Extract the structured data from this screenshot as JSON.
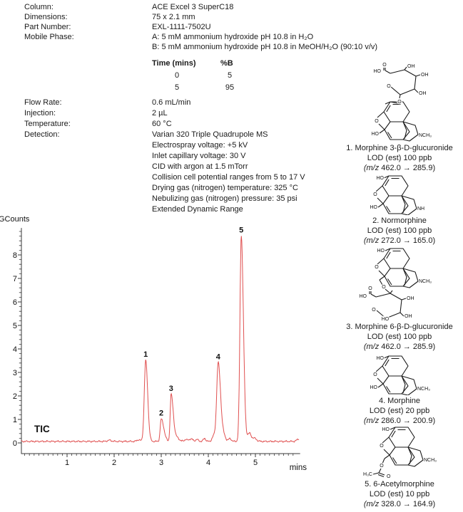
{
  "params": [
    {
      "label": "Column:",
      "value": "ACE Excel 3 SuperC18"
    },
    {
      "label": "Dimensions:",
      "value": "75 x 2.1 mm"
    },
    {
      "label": "Part Number:",
      "value": "EXL-1111-7502U"
    },
    {
      "label": "Mobile Phase:",
      "value": "A: 5 mM ammonium hydroxide pH 10.8 in H₂O",
      "value2": "B: 5 mM ammonium hydroxide pH 10.8 in MeOH/H₂O (90:10 v/v)"
    },
    {
      "label": "Flow Rate:",
      "value": "0.6 mL/min"
    },
    {
      "label": "Injection:",
      "value": "2 µL"
    },
    {
      "label": "Temperature:",
      "value": "60 °C"
    },
    {
      "label": "Detection:",
      "value": "Varian 320 Triple Quadrupole MS"
    }
  ],
  "detection_details": [
    "Electrospray voltage: +5 kV",
    "Inlet capillary voltage: 30 V",
    "CID with argon at 1.5 mTorr",
    "Collision cell potential ranges from 5 to 17 V",
    "Drying gas (nitrogen) temperature: 325 °C",
    "Nebulizing gas (nitrogen) pressure: 35 psi",
    "Extended Dynamic Range"
  ],
  "gradient_table": {
    "headers": [
      "Time (mins)",
      "%B"
    ],
    "rows": [
      [
        "0",
        "5"
      ],
      [
        "5",
        "95"
      ]
    ]
  },
  "chart_data": {
    "type": "line",
    "title": "TIC",
    "ylabel": "GCounts",
    "xlabel": "mins",
    "xlim": [
      0,
      5.95
    ],
    "ylim": [
      0,
      9.15
    ],
    "xticks": [
      1,
      2,
      3,
      4,
      5
    ],
    "yticks": [
      0,
      1,
      2,
      3,
      4,
      5,
      6,
      7,
      8
    ],
    "grid": false,
    "trace_color": "#e05050",
    "baseline_level": 0.07,
    "peaks": [
      {
        "label": "1",
        "rt": 2.67,
        "height": 3.45,
        "sigma_l": 0.03,
        "sigma_r": 0.042
      },
      {
        "label": "2",
        "rt": 3.0,
        "height": 0.95,
        "sigma_l": 0.022,
        "sigma_r": 0.055
      },
      {
        "label": "3",
        "rt": 3.21,
        "height": 2.0,
        "sigma_l": 0.02,
        "sigma_r": 0.045
      },
      {
        "label": "4",
        "rt": 4.21,
        "height": 3.35,
        "sigma_l": 0.032,
        "sigma_r": 0.05
      },
      {
        "label": "5",
        "rt": 4.7,
        "height": 8.75,
        "sigma_l": 0.028,
        "sigma_r": 0.045
      }
    ],
    "minor_features": [
      {
        "rt": 1.9,
        "h": 0.05,
        "s": 0.04
      },
      {
        "rt": 2.52,
        "h": 0.07,
        "s": 0.035
      },
      {
        "rt": 3.33,
        "h": 0.16,
        "s": 0.05
      },
      {
        "rt": 3.52,
        "h": 0.08,
        "s": 0.03
      },
      {
        "rt": 3.63,
        "h": 0.11,
        "s": 0.04
      },
      {
        "rt": 3.76,
        "h": 0.08,
        "s": 0.03
      },
      {
        "rt": 3.92,
        "h": 0.13,
        "s": 0.025
      },
      {
        "rt": 4.12,
        "h": 0.25,
        "s": 0.035
      },
      {
        "rt": 4.33,
        "h": 0.22,
        "s": 0.04
      },
      {
        "rt": 4.46,
        "h": 0.12,
        "s": 0.03
      },
      {
        "rt": 4.87,
        "h": 0.33,
        "s": 0.035
      },
      {
        "rt": 4.97,
        "h": 0.14,
        "s": 0.05
      },
      {
        "rt": 5.92,
        "h": 0.1,
        "s": 0.04
      }
    ]
  },
  "compounds": [
    {
      "name": "1. Morphine 3-β-D-glucuronide",
      "lod": "LOD (est) 100 ppb",
      "mz_italic": "(m/z ",
      "mz_rest": "462.0 → 285.9)",
      "atoms": [
        "O",
        "HO",
        "OH",
        "OH",
        "OH",
        "O",
        "O",
        "O",
        "NCH₃",
        "HO"
      ]
    },
    {
      "name": "2. Normorphine",
      "lod": "LOD (est) 100 ppb",
      "mz_italic": "(m/z ",
      "mz_rest": "272.0 → 165.0)",
      "atoms": [
        "HO",
        "O",
        "NH",
        "HO"
      ]
    },
    {
      "name": "3. Morphine 6-β-D-glucuronide",
      "lod": "LOD (est) 100 ppb",
      "mz_italic": "(m/z ",
      "mz_rest": "462.0 → 285.9)",
      "atoms": [
        "HO",
        "O",
        "NCH₃",
        "O",
        "O",
        "HO",
        "O",
        "OH",
        "OH",
        "HO"
      ]
    },
    {
      "name": "4. Morphine",
      "lod": "LOD (est) 20 ppb",
      "mz_italic": "(m/z ",
      "mz_rest": "286.0 → 200.9)",
      "atoms": [
        "HO",
        "O",
        "NCH₃",
        "HO"
      ]
    },
    {
      "name": "5. 6-Acetylmorphine",
      "lod": "LOD (est) 10 ppb",
      "mz_italic": "(m/z ",
      "mz_rest": "328.0 → 164.9)",
      "atoms": [
        "HO",
        "O",
        "NCH₃",
        "O",
        "H₃C",
        "O"
      ]
    }
  ]
}
